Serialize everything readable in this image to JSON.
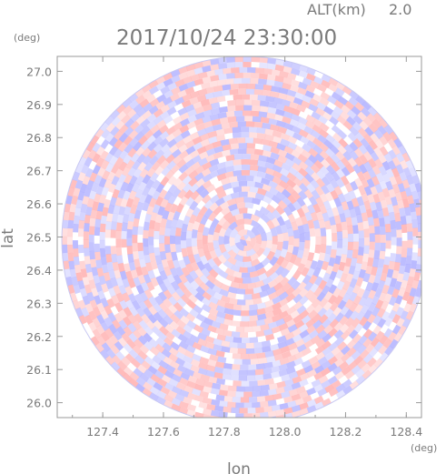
{
  "chart_data": {
    "type": "heatmap",
    "title": "2017/10/24 23:30:00",
    "altitude_label": "ALT(km)",
    "altitude_value": "2.0",
    "xlabel": "lon",
    "ylabel": "lat",
    "xunit": "(deg)",
    "yunit": "(deg)",
    "xlim": [
      127.25,
      128.45
    ],
    "ylim": [
      25.955,
      27.045
    ],
    "xticks": [
      "127.4",
      "127.6",
      "127.8",
      "128.0",
      "128.2",
      "128.4"
    ],
    "xtick_values": [
      127.4,
      127.6,
      127.8,
      128.0,
      128.2,
      128.4
    ],
    "yticks": [
      "26.0",
      "26.1",
      "26.2",
      "26.3",
      "26.4",
      "26.5",
      "26.6",
      "26.7",
      "26.8",
      "26.9",
      "27.0"
    ],
    "ytick_values": [
      26.0,
      26.1,
      26.2,
      26.3,
      26.4,
      26.5,
      26.6,
      26.7,
      26.8,
      26.9,
      27.0
    ],
    "center": {
      "lon": 127.87,
      "lat": 26.49
    },
    "radius_deg_lat": 0.555,
    "colors": {
      "positive": "#ff9a9a",
      "negative": "#9a9aff",
      "frame": "#9a9a9a"
    }
  }
}
